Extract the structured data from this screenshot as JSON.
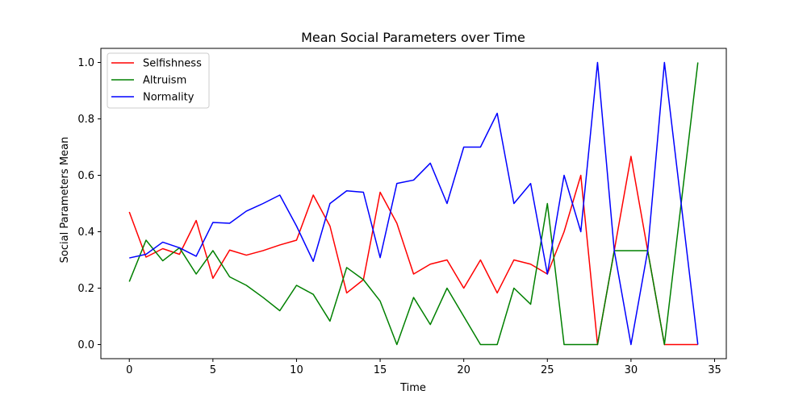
{
  "chart_data": {
    "type": "line",
    "title": "Mean Social Parameters over Time",
    "xlabel": "Time",
    "ylabel": "Social Parameters Mean",
    "xlim": [
      -1.7,
      35.7
    ],
    "ylim": [
      -0.05,
      1.05
    ],
    "xticks": [
      0,
      5,
      10,
      15,
      20,
      25,
      30,
      35
    ],
    "yticks": [
      0.0,
      0.2,
      0.4,
      0.6,
      0.8,
      1.0
    ],
    "xtick_labels": [
      "0",
      "5",
      "10",
      "15",
      "20",
      "25",
      "30",
      "35"
    ],
    "ytick_labels": [
      "0.0",
      "0.2",
      "0.4",
      "0.6",
      "0.8",
      "1.0"
    ],
    "grid": false,
    "legend_position": "upper-left",
    "x": [
      0,
      1,
      2,
      3,
      4,
      5,
      6,
      7,
      8,
      9,
      10,
      11,
      12,
      13,
      14,
      15,
      16,
      17,
      18,
      19,
      20,
      21,
      22,
      23,
      24,
      25,
      26,
      27,
      28,
      29,
      30,
      31,
      32,
      33,
      34
    ],
    "series": [
      {
        "name": "Selfishness",
        "color": "#ff0000",
        "values": [
          0.47,
          0.31,
          0.34,
          0.32,
          0.44,
          0.235,
          0.335,
          0.317,
          0.333,
          0.353,
          0.37,
          0.53,
          0.42,
          0.183,
          0.23,
          0.54,
          0.43,
          0.25,
          0.285,
          0.3,
          0.2,
          0.3,
          0.183,
          0.3,
          0.285,
          0.25,
          0.4,
          0.6,
          0.0,
          0.333,
          0.667,
          0.333,
          0.0,
          0.0,
          0.0
        ]
      },
      {
        "name": "Altruism",
        "color": "#008000",
        "values": [
          0.223,
          0.37,
          0.297,
          0.343,
          0.25,
          0.333,
          0.24,
          0.21,
          0.167,
          0.12,
          0.21,
          0.178,
          0.083,
          0.273,
          0.23,
          0.154,
          0.0,
          0.167,
          0.071,
          0.2,
          0.1,
          0.0,
          0.0,
          0.2,
          0.143,
          0.5,
          0.0,
          0.0,
          0.0,
          0.333,
          0.333,
          0.333,
          0.0,
          0.5,
          1.0
        ]
      },
      {
        "name": "Normality",
        "color": "#0000ff",
        "values": [
          0.307,
          0.32,
          0.363,
          0.343,
          0.313,
          0.433,
          0.43,
          0.473,
          0.5,
          0.53,
          0.42,
          0.295,
          0.5,
          0.545,
          0.54,
          0.308,
          0.571,
          0.583,
          0.643,
          0.5,
          0.7,
          0.7,
          0.82,
          0.5,
          0.571,
          0.25,
          0.6,
          0.4,
          1.0,
          0.333,
          0.0,
          0.333,
          1.0,
          0.5,
          0.0
        ]
      }
    ]
  }
}
